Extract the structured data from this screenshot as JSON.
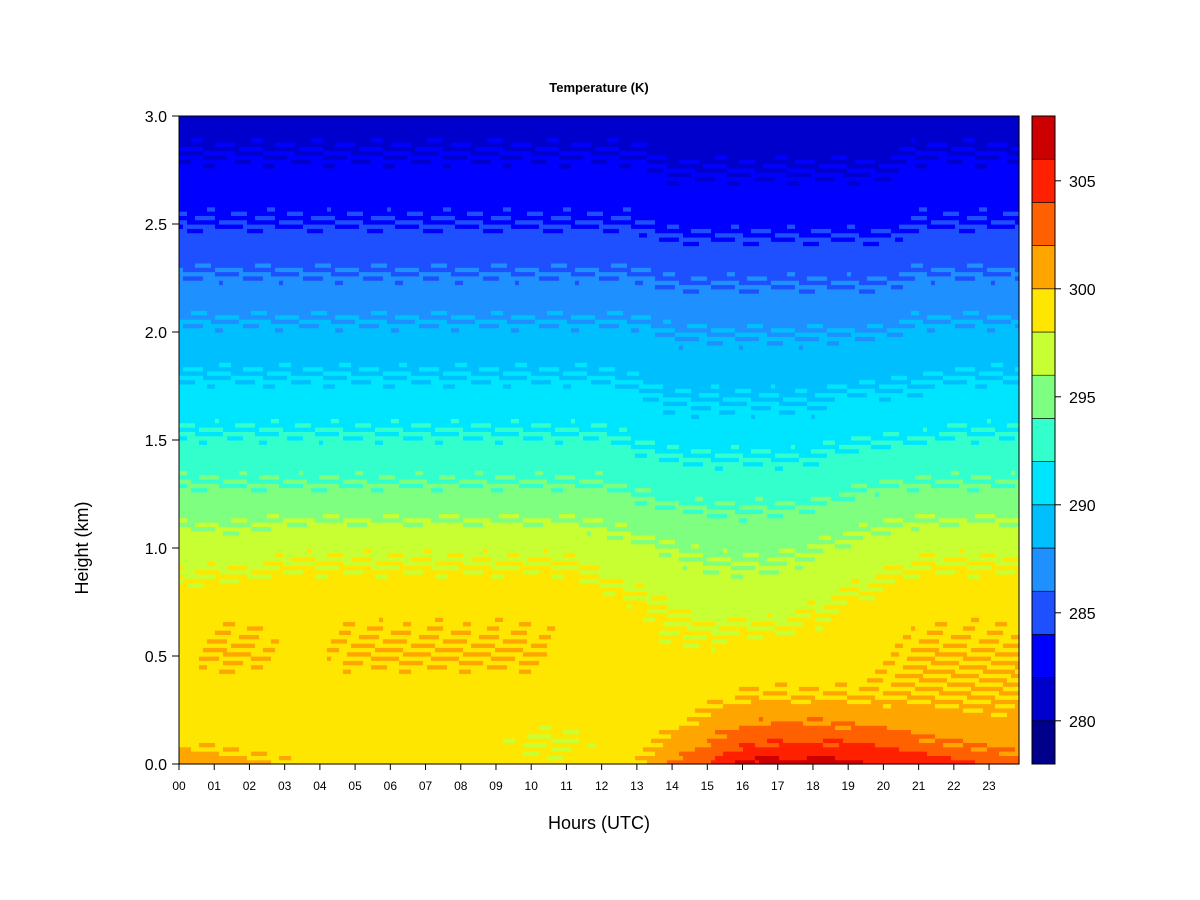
{
  "chart_data": {
    "type": "heatmap",
    "title": "Temperature (K)",
    "xlabel": "Hours (UTC)",
    "ylabel": "Height (km)",
    "xlim": [
      0,
      23.85
    ],
    "ylim": [
      0.0,
      3.0
    ],
    "x_ticks": [
      0,
      1,
      2,
      3,
      4,
      5,
      6,
      7,
      8,
      9,
      10,
      11,
      12,
      13,
      14,
      15,
      16,
      17,
      18,
      19,
      20,
      21,
      22,
      23
    ],
    "x_tick_labels": [
      "00",
      "01",
      "02",
      "03",
      "04",
      "05",
      "06",
      "07",
      "08",
      "09",
      "10",
      "11",
      "12",
      "13",
      "14",
      "15",
      "16",
      "17",
      "18",
      "19",
      "20",
      "21",
      "22",
      "23"
    ],
    "y_ticks": [
      0.0,
      0.5,
      1.0,
      1.5,
      2.0,
      2.5,
      3.0
    ],
    "y_tick_labels": [
      "0.0",
      "0.5",
      "1.0",
      "1.5",
      "2.0",
      "2.5",
      "3.0"
    ],
    "colorbar": {
      "levels": [
        278,
        280,
        282,
        284,
        286,
        288,
        290,
        292,
        294,
        296,
        298,
        300,
        302,
        304,
        306,
        308
      ],
      "colors": [
        "#00008B",
        "#0000CD",
        "#0000FF",
        "#1E50FF",
        "#1E90FF",
        "#00BFFF",
        "#00E5FF",
        "#33FFCC",
        "#7FFF7F",
        "#C8FF32",
        "#FFE600",
        "#FFA500",
        "#FF6000",
        "#FF2000",
        "#CC0000",
        "#800000"
      ],
      "tick_values": [
        280,
        285,
        290,
        295,
        300,
        305
      ],
      "tick_labels": [
        "280",
        "285",
        "290",
        "295",
        "300",
        "305"
      ]
    },
    "hours": [
      0,
      1,
      2,
      3,
      4,
      5,
      6,
      7,
      8,
      9,
      10,
      11,
      12,
      13,
      14,
      15,
      16,
      17,
      18,
      19,
      20,
      21,
      22,
      23,
      23.85
    ],
    "heights_km": [
      0.0,
      0.1,
      0.2,
      0.3,
      0.5,
      0.7,
      1.0,
      1.3,
      1.6,
      2.0,
      2.5,
      3.0
    ],
    "temperature_K": [
      [
        302,
        299.5,
        299,
        298.5,
        299.5,
        299,
        297,
        294,
        291.5,
        288.5,
        284,
        281
      ],
      [
        301,
        299.5,
        299,
        299,
        300,
        299.5,
        297,
        294,
        291.5,
        288.5,
        284,
        281
      ],
      [
        300.5,
        299,
        299,
        299,
        300,
        299.5,
        297,
        294,
        291.5,
        288.5,
        284,
        281
      ],
      [
        300,
        299,
        299,
        299,
        299.5,
        299.5,
        297.5,
        294,
        291.5,
        288.5,
        284,
        281
      ],
      [
        299.5,
        299,
        299,
        299,
        299.5,
        299.5,
        297.5,
        294,
        291.5,
        288.5,
        284,
        281
      ],
      [
        299.5,
        299,
        299,
        299,
        300,
        299.5,
        297.5,
        294,
        291.5,
        288.5,
        284,
        281
      ],
      [
        299.5,
        299,
        299,
        299,
        300,
        299.5,
        297.5,
        294,
        291.5,
        288.5,
        284,
        281
      ],
      [
        299,
        298.5,
        299,
        299,
        300,
        299.5,
        297.5,
        294,
        291.5,
        288.5,
        284,
        281
      ],
      [
        299,
        298.5,
        299,
        299,
        300,
        299.5,
        297.5,
        294,
        291.5,
        288.5,
        284,
        281
      ],
      [
        299,
        298.5,
        299,
        299,
        300,
        299.5,
        297.5,
        294,
        291.5,
        288.5,
        284,
        281
      ],
      [
        298.5,
        298,
        298.5,
        299,
        300,
        299.5,
        297.5,
        294,
        291.5,
        288.5,
        284,
        281
      ],
      [
        298.5,
        298,
        298.5,
        299,
        299.5,
        299.5,
        297.5,
        294,
        291.5,
        288.5,
        284,
        281
      ],
      [
        299,
        298.5,
        298.5,
        298.5,
        299,
        299,
        297,
        294,
        291.5,
        288.5,
        284,
        281
      ],
      [
        300,
        299,
        298.5,
        298.5,
        298.5,
        298.5,
        296.5,
        293.5,
        291,
        288.5,
        284,
        281
      ],
      [
        302,
        300.5,
        299.5,
        299,
        298.5,
        298,
        296,
        293,
        290.5,
        288,
        283.5,
        280.5
      ],
      [
        304,
        302,
        300.5,
        299.5,
        298.5,
        297.5,
        295.5,
        293,
        290.5,
        288,
        283.5,
        280.5
      ],
      [
        306.5,
        303.5,
        301.5,
        300,
        299,
        297.5,
        295.5,
        293,
        290.5,
        288,
        283.5,
        280.5
      ],
      [
        307,
        304,
        302,
        300,
        299,
        297.5,
        295.5,
        293,
        290.5,
        288,
        283.5,
        280.5
      ],
      [
        307,
        304,
        302,
        300,
        299,
        298,
        296,
        293,
        290.5,
        288,
        283.5,
        280.5
      ],
      [
        306.5,
        304,
        301.5,
        300,
        299,
        298.5,
        296.5,
        293.5,
        291,
        288,
        283.5,
        280.5
      ],
      [
        306,
        303.5,
        301.5,
        300,
        299.5,
        299,
        297,
        294,
        291,
        288,
        283.5,
        280.5
      ],
      [
        305.5,
        302.5,
        301,
        300,
        300,
        299.5,
        297.5,
        294,
        291,
        288.5,
        284,
        281
      ],
      [
        304.5,
        302,
        300.5,
        300,
        300,
        299.5,
        297.5,
        294,
        291.5,
        288.5,
        284,
        281
      ],
      [
        303.5,
        301.5,
        300.5,
        300,
        300,
        299.5,
        297.5,
        294,
        291.5,
        288.5,
        284,
        281
      ],
      [
        303,
        301,
        300.5,
        300,
        300,
        299.5,
        297.5,
        294,
        291.5,
        288.5,
        284,
        281
      ]
    ]
  }
}
